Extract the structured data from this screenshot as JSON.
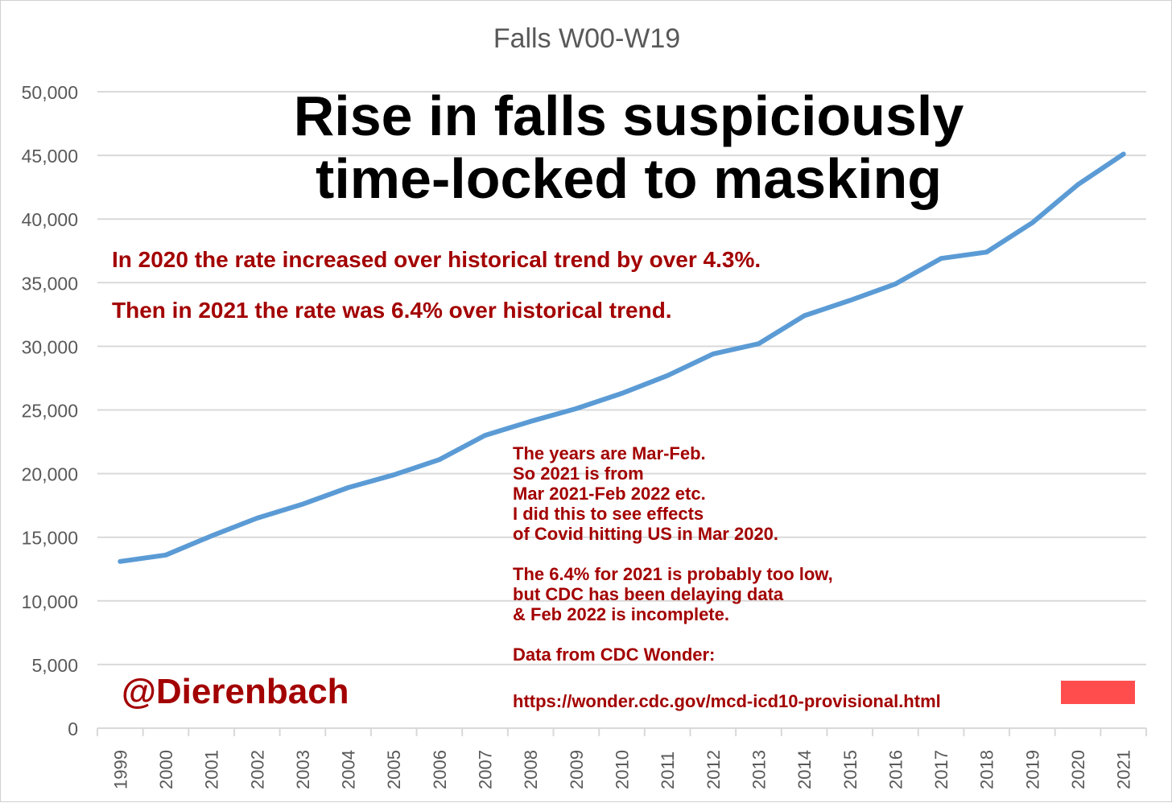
{
  "chart_data": {
    "type": "line",
    "title": "Falls W00-W19",
    "xlabel": "",
    "ylabel": "",
    "categories": [
      "1999",
      "2000",
      "2001",
      "2002",
      "2003",
      "2004",
      "2005",
      "2006",
      "2007",
      "2008",
      "2009",
      "2010",
      "2011",
      "2012",
      "2013",
      "2014",
      "2015",
      "2016",
      "2017",
      "2018",
      "2019",
      "2020",
      "2021"
    ],
    "series": [
      {
        "values": [
          13100,
          13600,
          15100,
          16500,
          17600,
          18900,
          19900,
          21100,
          23000,
          24100,
          25100,
          26300,
          27700,
          29400,
          30200,
          32400,
          33600,
          34900,
          36900,
          37400,
          39700,
          42700,
          45100
        ],
        "color": "#5b9bd5"
      }
    ],
    "ylim": [
      0,
      50000
    ],
    "yticks": [
      0,
      5000,
      10000,
      15000,
      20000,
      25000,
      30000,
      35000,
      40000,
      45000,
      50000
    ],
    "ytick_labels": [
      "0",
      "5,000",
      "10,000",
      "15,000",
      "20,000",
      "25,000",
      "30,000",
      "35,000",
      "40,000",
      "45,000",
      "50,000"
    ],
    "grid": true,
    "legend": "none"
  },
  "annotations": {
    "headline": [
      "Rise in falls suspiciously",
      "time-locked to masking"
    ],
    "note_1": "In 2020 the rate increased over historical trend by over 4.3%.",
    "note_2": "Then in 2021 the rate was 6.4% over historical trend.",
    "box_lines": [
      "The years are Mar-Feb.",
      "So 2021 is from",
      "Mar 2021-Feb 2022 etc.",
      "I did this to see effects",
      "of Covid hitting US in Mar 2020.",
      "",
      "The 6.4% for 2021 is probably too low,",
      "but CDC has been delaying data",
      "& Feb 2022 is incomplete.",
      "",
      "Data from CDC Wonder:"
    ],
    "url": "https://wonder.cdc.gov/mcd-icd10-provisional.html",
    "handle": "@Dierenbach"
  },
  "colors": {
    "line": "#5b9bd5",
    "grid": "#d9d9d9",
    "axis_text": "#595959",
    "annotation": "#a30000",
    "red_box": "#ff4d4d"
  }
}
